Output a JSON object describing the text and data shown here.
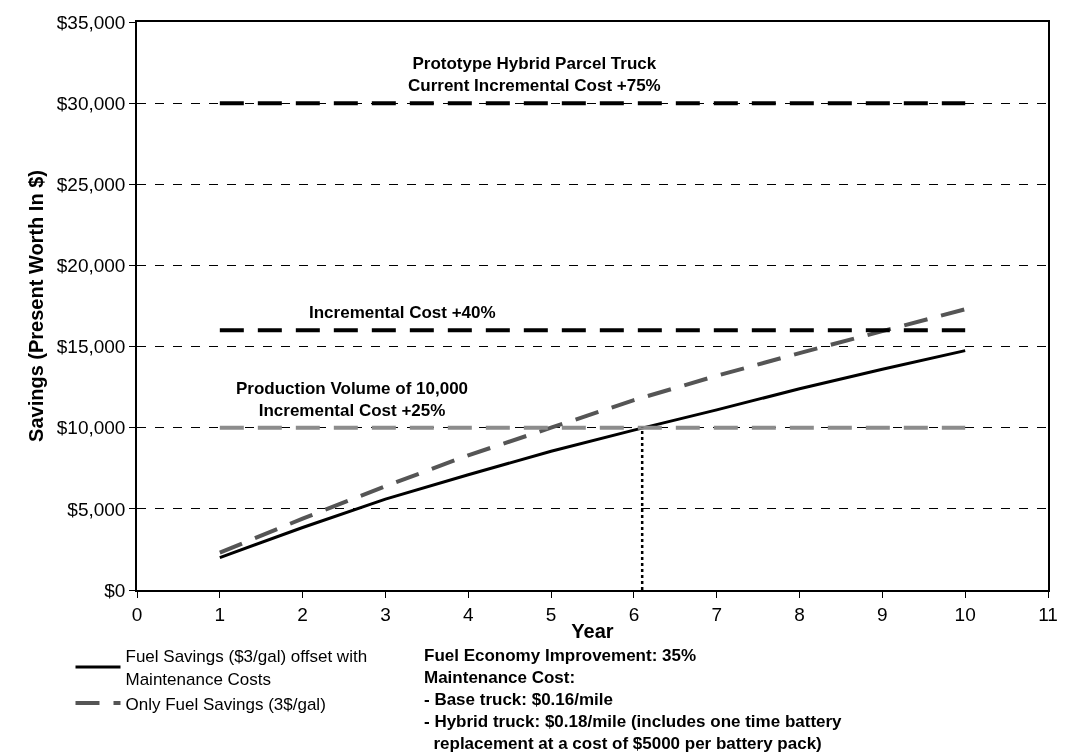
{
  "chart_data": {
    "type": "line",
    "xlabel": "Year",
    "ylabel": "Savings (Present Worth In $)",
    "x": [
      1,
      2,
      3,
      4,
      5,
      6,
      7,
      8,
      9,
      10
    ],
    "series": [
      {
        "name": "Fuel Savings ($3/gal) offset with\nMaintenance Costs",
        "color": "#000000",
        "line_style": "solid",
        "values": [
          2000,
          3850,
          5600,
          7100,
          8550,
          9850,
          11100,
          12400,
          13600,
          14750
        ]
      },
      {
        "name": "Only Fuel Savings (3$/gal)",
        "color": "#555555",
        "line_style": "dashed",
        "values": [
          2300,
          4400,
          6400,
          8300,
          10000,
          11700,
          13200,
          14600,
          15950,
          17300
        ]
      },
      {
        "x": [
          1,
          10
        ],
        "values": [
          30000,
          30000
        ],
        "color": "#000000",
        "line_style": "dashed"
      },
      {
        "x": [
          1,
          10
        ],
        "values": [
          16000,
          16000
        ],
        "color": "#000000",
        "line_style": "dashed"
      },
      {
        "x": [
          1,
          10
        ],
        "values": [
          10000,
          10000
        ],
        "color": "#8c8c8c",
        "line_style": "dashed"
      },
      {
        "x": [
          6.1,
          6.1
        ],
        "values": [
          0,
          10000
        ],
        "color": "#000000",
        "line_style": "dotted"
      }
    ],
    "annotations": [
      {
        "text": "Prototype Hybrid Parcel Truck\nCurrent Incremental Cost +75%",
        "x": 4.8,
        "y": 30000
      },
      {
        "text": "Incremental Cost +40%",
        "x": 3.2,
        "y": 16000
      },
      {
        "text": "Production Volume of 10,000\nIncremental Cost +25%",
        "x": 2.6,
        "y": 10000
      },
      "Fuel Economy Improvement: 35%\nMaintenance Cost:\n- Base truck: $0.16/mile\n- Hybrid truck: $0.18/mile (includes one time battery\n  replacement at a cost of $5000 per battery pack)"
    ],
    "xlim": [
      0,
      11
    ],
    "xticks": [
      0,
      1,
      2,
      3,
      4,
      5,
      6,
      7,
      8,
      9,
      10,
      11
    ],
    "ylim": [
      0,
      35000
    ],
    "yticks": [
      {
        "value": 0,
        "label": "$0"
      },
      {
        "value": 5000,
        "label": "$5,000"
      },
      {
        "value": 10000,
        "label": "$10,000"
      },
      {
        "value": 15000,
        "label": "$15,000"
      },
      {
        "value": 20000,
        "label": "$20,000"
      },
      {
        "value": 25000,
        "label": "$25,000"
      },
      {
        "value": 30000,
        "label": "$30,000"
      },
      {
        "value": 35000,
        "label": "$35,000"
      }
    ],
    "grid": "y",
    "legend": "bottom left",
    "marker": "none"
  }
}
